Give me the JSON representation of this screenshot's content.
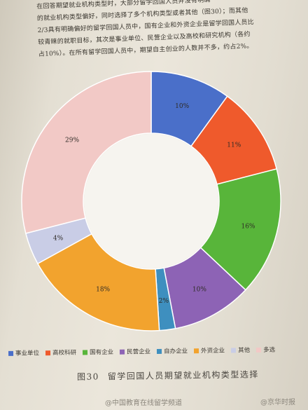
{
  "intro_text": [
    "在回答期望就业机构类型时，大部分留学回国人员并没有明确",
    "的就业机构类型偏好，同时选择了多个机构类型或者其他（图30）；而其他",
    "2/3具有明确偏好的留学回国人员中，国有企业和外资企业是留学回国人员比",
    "较青睐的就职目标，其次是事业单位、民营企业以及高校和研究机构（各约",
    "占10%）。在所有留学回国人员中，期望自主创业的人数并不多，约占2%。"
  ],
  "chart_data": {
    "type": "pie",
    "style": "donut",
    "title": "留学回国人员期望就业机构类型选择",
    "figure_number": "图30",
    "categories": [
      "事业单位",
      "高校科研",
      "国有企业",
      "民营企业",
      "自办企业",
      "外资企业",
      "其他",
      "多选"
    ],
    "values": [
      10,
      11,
      16,
      10,
      2,
      18,
      4,
      29
    ],
    "labels": [
      "10%",
      "11%",
      "16%",
      "10%",
      "2%",
      "18%",
      "4%",
      "29%"
    ],
    "colors": [
      "#4a6fc9",
      "#ef5a2c",
      "#58b53a",
      "#8d63b5",
      "#3e8fbf",
      "#f2a32e",
      "#c9cde6",
      "#f2c9c6"
    ],
    "legend_position": "bottom",
    "start": "top, clockwise"
  },
  "watermark_left": "@中国教育在线留学频道",
  "watermark_right": "@京华时报"
}
